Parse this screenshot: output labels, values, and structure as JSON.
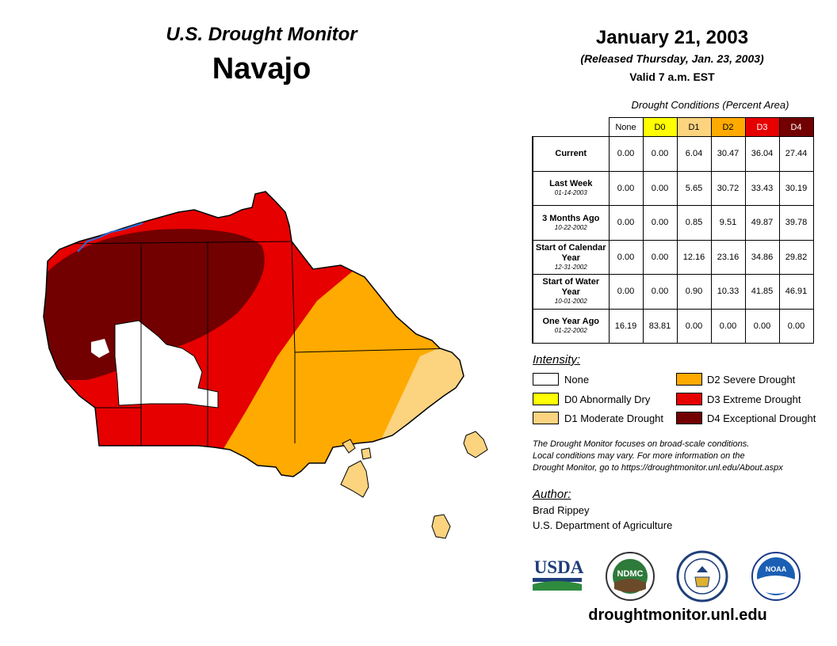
{
  "header": {
    "title": "U.S. Drought Monitor",
    "region": "Navajo",
    "date": "January 21, 2003",
    "released": "(Released Thursday, Jan. 23, 2003)",
    "valid": "Valid 7 a.m. EST"
  },
  "table": {
    "caption": "Drought Conditions (Percent Area)",
    "columns": [
      "None",
      "D0",
      "D1",
      "D2",
      "D3",
      "D4"
    ],
    "column_colors": [
      "#ffffff",
      "#ffff00",
      "#fcd37f",
      "#ffaa00",
      "#e60000",
      "#730000"
    ],
    "rows": [
      {
        "label": "Current",
        "sub": "",
        "values": [
          "0.00",
          "0.00",
          "6.04",
          "30.47",
          "36.04",
          "27.44"
        ]
      },
      {
        "label": "Last Week",
        "sub": "01-14-2003",
        "values": [
          "0.00",
          "0.00",
          "5.65",
          "30.72",
          "33.43",
          "30.19"
        ]
      },
      {
        "label": "3 Months Ago",
        "sub": "10-22-2002",
        "values": [
          "0.00",
          "0.00",
          "0.85",
          "9.51",
          "49.87",
          "39.78"
        ]
      },
      {
        "label": "Start of Calendar Year",
        "sub": "12-31-2002",
        "values": [
          "0.00",
          "0.00",
          "12.16",
          "23.16",
          "34.86",
          "29.82"
        ]
      },
      {
        "label": "Start of Water Year",
        "sub": "10-01-2002",
        "values": [
          "0.00",
          "0.00",
          "0.90",
          "10.33",
          "41.85",
          "46.91"
        ]
      },
      {
        "label": "One Year Ago",
        "sub": "01-22-2002",
        "values": [
          "16.19",
          "83.81",
          "0.00",
          "0.00",
          "0.00",
          "0.00"
        ]
      }
    ]
  },
  "legend": {
    "title": "Intensity:",
    "items": [
      {
        "label": "None",
        "color": "#ffffff"
      },
      {
        "label": "D0 Abnormally Dry",
        "color": "#ffff00"
      },
      {
        "label": "D1 Moderate Drought",
        "color": "#fcd37f"
      },
      {
        "label": "D2 Severe Drought",
        "color": "#ffaa00"
      },
      {
        "label": "D3 Extreme Drought",
        "color": "#e60000"
      },
      {
        "label": "D4 Exceptional Drought",
        "color": "#730000"
      }
    ]
  },
  "note": {
    "line1": "The Drought Monitor focuses on broad-scale conditions.",
    "line2": "Local conditions may vary. For more information on the",
    "line3": "Drought Monitor, go to https://droughtmonitor.unl.edu/About.aspx"
  },
  "author": {
    "title": "Author:",
    "name": "Brad Rippey",
    "org": "U.S. Department of Agriculture"
  },
  "logos": {
    "usda": "USDA",
    "ndmc": "NDMC",
    "noaa": "NOAA"
  },
  "website": "droughtmonitor.unl.edu"
}
